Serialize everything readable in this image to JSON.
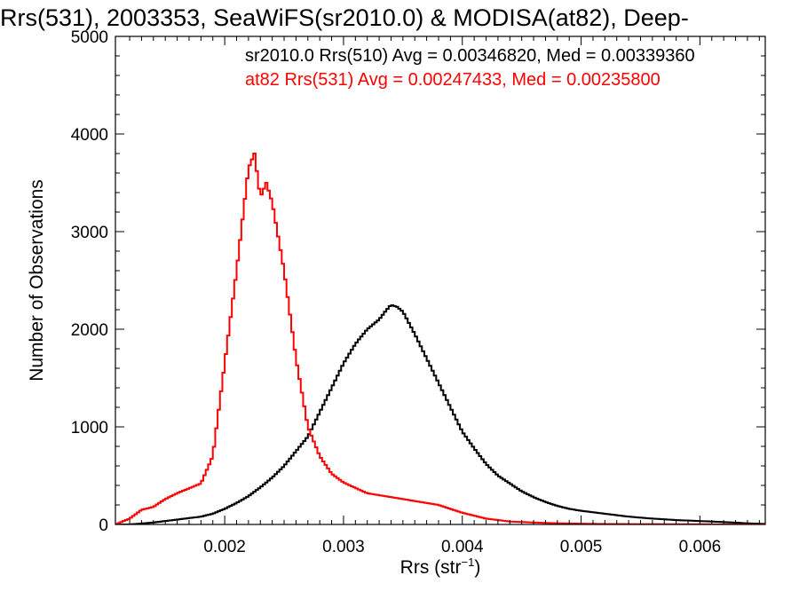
{
  "chart_data": {
    "type": "line",
    "title": "Rrs(531), 2003353, SeaWiFS(sr2010.0) & MODISA(at82), Deep-",
    "xlabel": "Rrs (str",
    "xlabel_sup": "−1",
    "xlabel_close": ")",
    "ylabel": "Number of Observations",
    "xlim": [
      0.00108,
      0.00655
    ],
    "ylim": [
      0,
      5000
    ],
    "x_ticks": [
      0.002,
      0.003,
      0.004,
      0.005,
      0.006
    ],
    "x_tick_labels": [
      "0.002",
      "0.003",
      "0.004",
      "0.005",
      "0.006"
    ],
    "y_ticks": [
      0,
      1000,
      2000,
      3000,
      4000,
      5000
    ],
    "y_tick_labels": [
      "0",
      "1000",
      "2000",
      "3000",
      "4000",
      "5000"
    ],
    "legend_placement": "top-right",
    "annotations": [
      {
        "text": "sr2010.0 Rrs(510) Avg = 0.00346820, Med = 0.00339360",
        "color": "#000000"
      },
      {
        "text": "at82 Rrs(531) Avg = 0.00247433, Med = 0.00235800",
        "color": "#ff0000"
      }
    ],
    "series": [
      {
        "color": "#000000",
        "x": [
          0.00108,
          0.0012,
          0.0014,
          0.0016,
          0.0018,
          0.0019,
          0.002,
          0.0021,
          0.0022,
          0.0023,
          0.0024,
          0.0025,
          0.0026,
          0.0027,
          0.0028,
          0.0029,
          0.003,
          0.0031,
          0.0032,
          0.0033,
          0.00335,
          0.0034,
          0.00345,
          0.0035,
          0.0036,
          0.0037,
          0.0038,
          0.0039,
          0.004,
          0.0041,
          0.0042,
          0.0043,
          0.0044,
          0.0045,
          0.0046,
          0.0047,
          0.0048,
          0.0049,
          0.005,
          0.0052,
          0.0054,
          0.0056,
          0.0058,
          0.006,
          0.0062,
          0.0064,
          0.00655
        ],
        "values": [
          0,
          0,
          20,
          50,
          80,
          110,
          160,
          220,
          290,
          380,
          480,
          600,
          750,
          900,
          1150,
          1400,
          1650,
          1850,
          2000,
          2100,
          2180,
          2250,
          2230,
          2180,
          1950,
          1700,
          1450,
          1200,
          950,
          780,
          620,
          500,
          420,
          340,
          280,
          230,
          190,
          160,
          140,
          110,
          80,
          60,
          45,
          35,
          25,
          12,
          5
        ]
      },
      {
        "color": "#ff0000",
        "x": [
          0.00108,
          0.0012,
          0.0013,
          0.0014,
          0.0015,
          0.0016,
          0.0017,
          0.0018,
          0.0019,
          0.002,
          0.0021,
          0.0022,
          0.00225,
          0.0023,
          0.00235,
          0.0024,
          0.0025,
          0.0026,
          0.0027,
          0.0028,
          0.0029,
          0.003,
          0.0032,
          0.0034,
          0.0036,
          0.0038,
          0.004,
          0.0042,
          0.0044,
          0.0046,
          0.0048,
          0.005,
          0.0052,
          0.0056,
          0.006,
          0.00655
        ],
        "values": [
          0,
          60,
          150,
          180,
          260,
          320,
          370,
          420,
          700,
          1650,
          2600,
          3650,
          3800,
          3350,
          3500,
          3300,
          2600,
          1700,
          1000,
          700,
          520,
          430,
          320,
          280,
          240,
          200,
          120,
          60,
          30,
          20,
          12,
          8,
          5,
          3,
          2,
          0
        ]
      }
    ]
  }
}
